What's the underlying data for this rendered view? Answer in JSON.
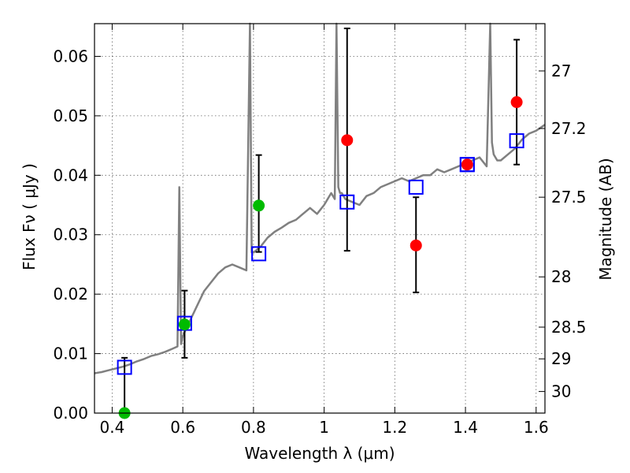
{
  "chart_data": {
    "type": "scatter",
    "title": "",
    "xlabel": "Wavelength  λ (μm)",
    "ylabel": "Flux  Fν  ( μJy )",
    "ylabel_right": "Magnitude (AB)",
    "xlim": [
      0.35,
      1.625
    ],
    "ylim": [
      0.0,
      0.0655
    ],
    "x_ticks": [
      0.4,
      0.6,
      0.8,
      1.0,
      1.2,
      1.4,
      1.6
    ],
    "x_tick_labels": [
      "0.4",
      "0.6",
      "0.8",
      "1",
      "1.2",
      "1.4",
      "1.6"
    ],
    "y_ticks": [
      0.0,
      0.01,
      0.02,
      0.03,
      0.04,
      0.05,
      0.06
    ],
    "y_tick_labels": [
      "0.00",
      "0.01",
      "0.02",
      "0.03",
      "0.04",
      "0.05",
      "0.06"
    ],
    "right_ticks": [
      27,
      27.2,
      27.5,
      28,
      28.5,
      29,
      30
    ],
    "right_tick_labels": [
      "27",
      "27.2",
      "27.5",
      "28",
      "28.5",
      "29",
      "30"
    ],
    "grid": true,
    "colors": {
      "spectrum": "#808080",
      "model_box": "#0000ff",
      "detection": "#00bb00",
      "observed": "#ff0000",
      "errorbar": "#000000"
    },
    "series": [
      {
        "kind": "line",
        "x": [
          0.35,
          0.37,
          0.39,
          0.41,
          0.43,
          0.45,
          0.47,
          0.49,
          0.51,
          0.53,
          0.55,
          0.57,
          0.585,
          0.59,
          0.595,
          0.6,
          0.62,
          0.64,
          0.66,
          0.68,
          0.7,
          0.72,
          0.74,
          0.76,
          0.78,
          0.79,
          0.795,
          0.8,
          0.82,
          0.84,
          0.86,
          0.88,
          0.9,
          0.92,
          0.94,
          0.96,
          0.98,
          1.0,
          1.02,
          1.03,
          1.035,
          1.04,
          1.045,
          1.05,
          1.06,
          1.08,
          1.1,
          1.12,
          1.14,
          1.16,
          1.18,
          1.2,
          1.22,
          1.24,
          1.26,
          1.28,
          1.3,
          1.32,
          1.34,
          1.36,
          1.38,
          1.4,
          1.42,
          1.44,
          1.46,
          1.47,
          1.475,
          1.48,
          1.49,
          1.5,
          1.52,
          1.54,
          1.56,
          1.58,
          1.6,
          1.625
        ],
        "y": [
          0.0067,
          0.0069,
          0.0072,
          0.0075,
          0.0078,
          0.0082,
          0.0087,
          0.0091,
          0.0096,
          0.0099,
          0.0103,
          0.0108,
          0.0112,
          0.038,
          0.0116,
          0.013,
          0.0155,
          0.018,
          0.0205,
          0.022,
          0.0235,
          0.0245,
          0.025,
          0.0245,
          0.024,
          0.066,
          0.027,
          0.027,
          0.028,
          0.0295,
          0.0305,
          0.0312,
          0.032,
          0.0325,
          0.0335,
          0.0345,
          0.0335,
          0.035,
          0.037,
          0.036,
          0.066,
          0.038,
          0.037,
          0.037,
          0.036,
          0.0355,
          0.035,
          0.0365,
          0.037,
          0.038,
          0.0385,
          0.039,
          0.0395,
          0.039,
          0.0395,
          0.04,
          0.04,
          0.041,
          0.0405,
          0.041,
          0.0415,
          0.042,
          0.0425,
          0.043,
          0.0415,
          0.066,
          0.0455,
          0.0435,
          0.0425,
          0.0425,
          0.0435,
          0.0445,
          0.046,
          0.047,
          0.0475,
          0.0485
        ]
      },
      {
        "kind": "box",
        "x": [
          0.435,
          0.605,
          0.815,
          1.065,
          1.26,
          1.405,
          1.545
        ],
        "y": [
          0.0077,
          0.0151,
          0.0268,
          0.0355,
          0.038,
          0.0418,
          0.0458
        ]
      },
      {
        "kind": "point",
        "x": [
          0.435,
          0.605,
          0.815
        ],
        "y": [
          0.0,
          0.0149,
          0.0349
        ],
        "yerr_low": [
          0.0,
          0.0056,
          0.0078
        ],
        "yerr_high": [
          0.0093,
          0.0057,
          0.0085
        ]
      },
      {
        "kind": "point",
        "x": [
          1.065,
          1.26,
          1.405,
          1.545
        ],
        "y": [
          0.0459,
          0.0282,
          0.0418,
          0.0523
        ],
        "yerr_low": [
          0.0186,
          0.0079,
          0.0,
          0.0105
        ],
        "yerr_high": [
          0.0188,
          0.0081,
          0.0,
          0.0105
        ]
      }
    ]
  }
}
